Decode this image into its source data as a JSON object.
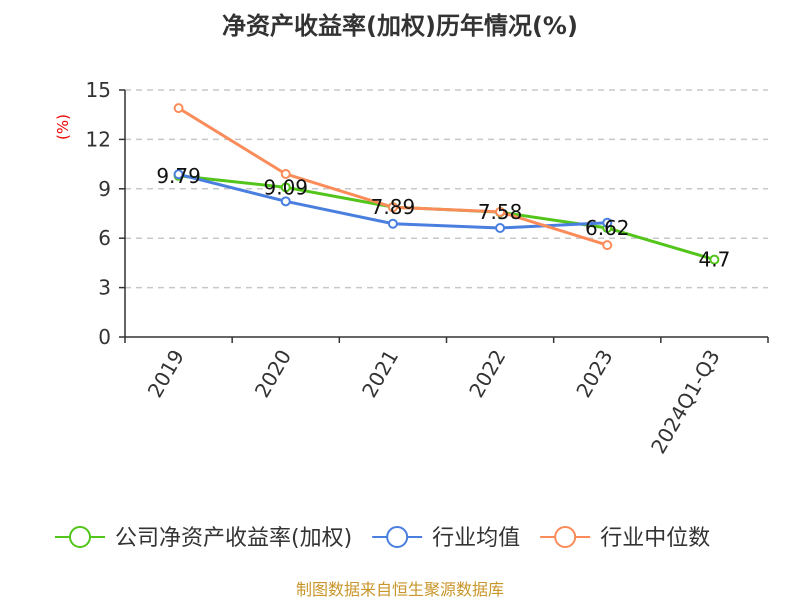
{
  "chart_data": {
    "type": "line",
    "title": "净资产收益率(加权)历年情况(%)",
    "ylabel": "(%)",
    "xlabel": "",
    "ylim": [
      0,
      15
    ],
    "yticks": [
      0,
      3,
      6,
      9,
      12,
      15
    ],
    "grid": true,
    "categories": [
      "2019",
      "2020",
      "2021",
      "2022",
      "2023",
      "2024Q1-Q3"
    ],
    "series": [
      {
        "name": "公司净资产收益率(加权)",
        "color": "#52c41a",
        "values": [
          9.79,
          9.09,
          7.89,
          7.58,
          6.62,
          4.7
        ],
        "labels": [
          "9.79",
          "9.09",
          "7.89",
          "7.58",
          "6.62",
          "4.7"
        ]
      },
      {
        "name": "行业均值",
        "color": "#4a7fe0",
        "values": [
          9.88,
          8.24,
          6.88,
          6.62,
          6.94,
          null
        ]
      },
      {
        "name": "行业中位数",
        "color": "#fb8c5a",
        "values": [
          13.9,
          9.9,
          7.88,
          7.6,
          5.58,
          null
        ]
      }
    ],
    "legend_position": "bottom",
    "source": "制图数据来自恒生聚源数据库"
  }
}
